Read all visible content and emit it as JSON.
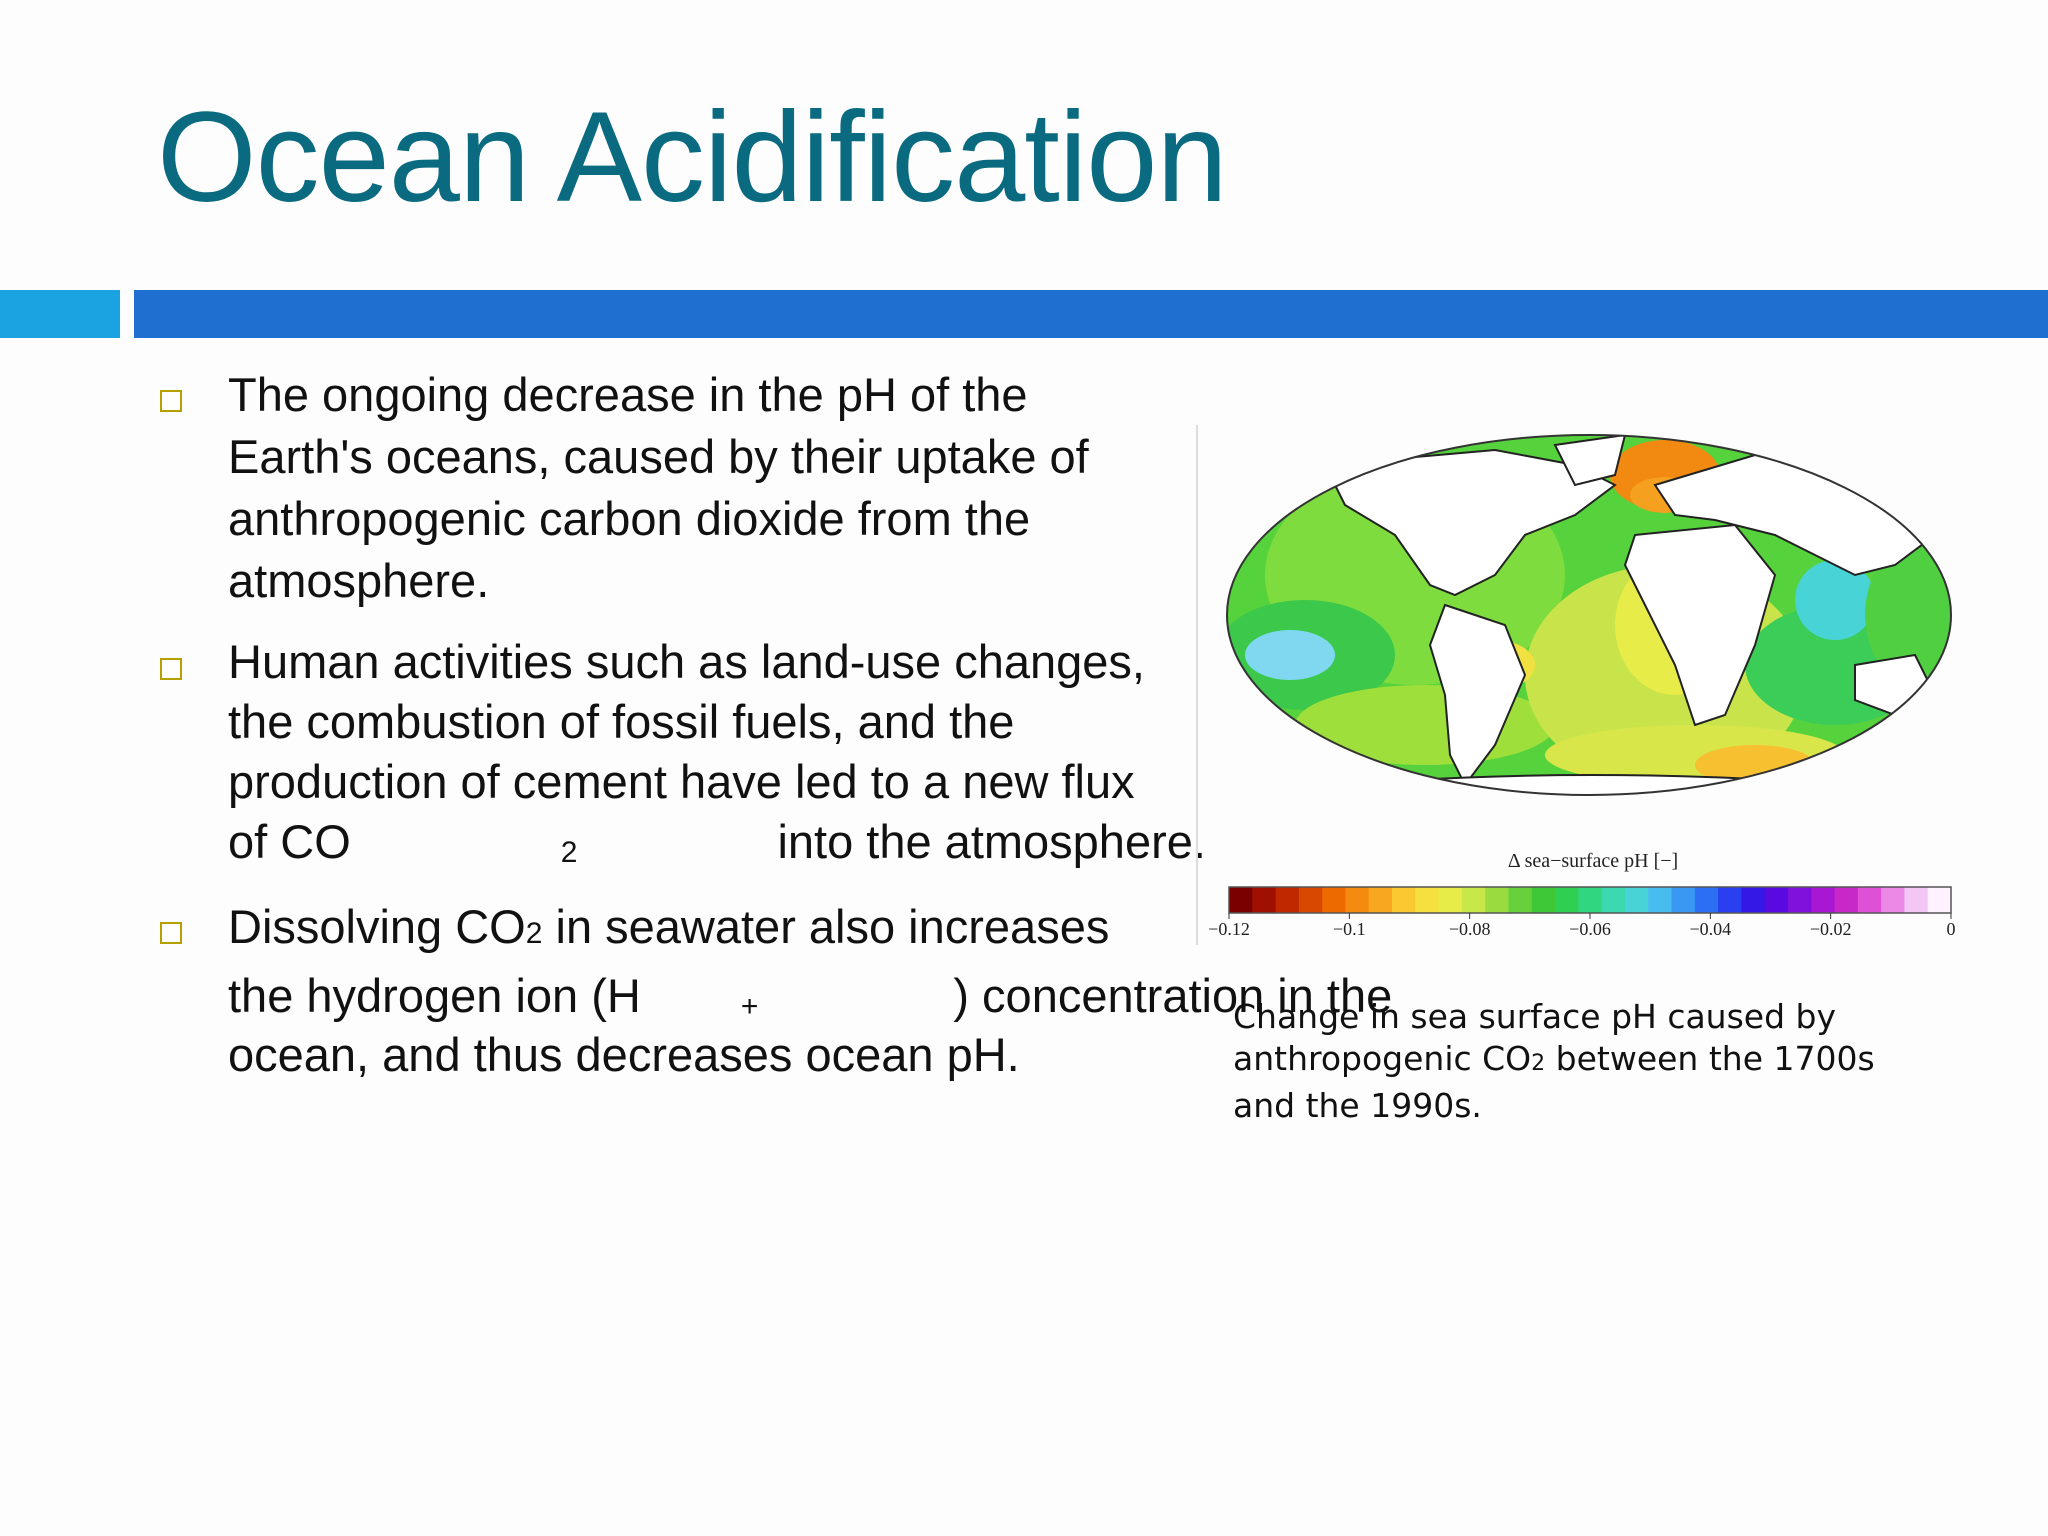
{
  "slide": {
    "title": "Ocean Acidification",
    "bullets": [
      {
        "lines": [
          "The ongoing decrease in the pH of the",
          "Earth's oceans, caused by their uptake of",
          "anthropogenic carbon dioxide from the",
          "atmosphere."
        ]
      },
      {
        "lines": [
          "Human activities such as land-use changes,",
          "the combustion of fossil fuels, and the",
          "production of cement have led to a new flux"
        ],
        "last_pre": "of CO",
        "last_sub": "2",
        "last_post": "into the atmosphere."
      },
      {
        "line1_pre": "Dissolving CO",
        "line1_sub": "2",
        "line1_post": " in seawater also increases",
        "line2_pre": "the hydrogen ion (H",
        "line2_sup": "+",
        "line2_post": ") concentration in the",
        "line3": "ocean, and thus decreases ocean pH."
      }
    ]
  },
  "figure": {
    "colorbar_title": "Δ sea−surface pH [−]",
    "colorbar_ticks": [
      "−0.12",
      "−0.1",
      "−0.08",
      "−0.06",
      "−0.04",
      "−0.02",
      "0"
    ],
    "colorbar_colors": [
      "#7a0000",
      "#a01000",
      "#c02800",
      "#d84800",
      "#ec6a00",
      "#f48a10",
      "#f8a820",
      "#fbc832",
      "#f6e040",
      "#e8ec48",
      "#c8e84a",
      "#9adc40",
      "#66d13a",
      "#3ec838",
      "#2fcf52",
      "#30d680",
      "#3cd8b0",
      "#48d4d6",
      "#46bcef",
      "#3a98f2",
      "#2c6ef4",
      "#2a40f0",
      "#3418e6",
      "#5a0ae0",
      "#8010dc",
      "#a818d2",
      "#c828c8",
      "#de50d6",
      "#ec88e8",
      "#f4c6f4",
      "#fdf2fd"
    ],
    "caption": {
      "line1": "Change in sea surface pH caused by",
      "line2_pre": "anthropogenic CO",
      "line2_sub": "2",
      "line2_post": " between the 1700s",
      "line3": "and the 1990s."
    }
  }
}
